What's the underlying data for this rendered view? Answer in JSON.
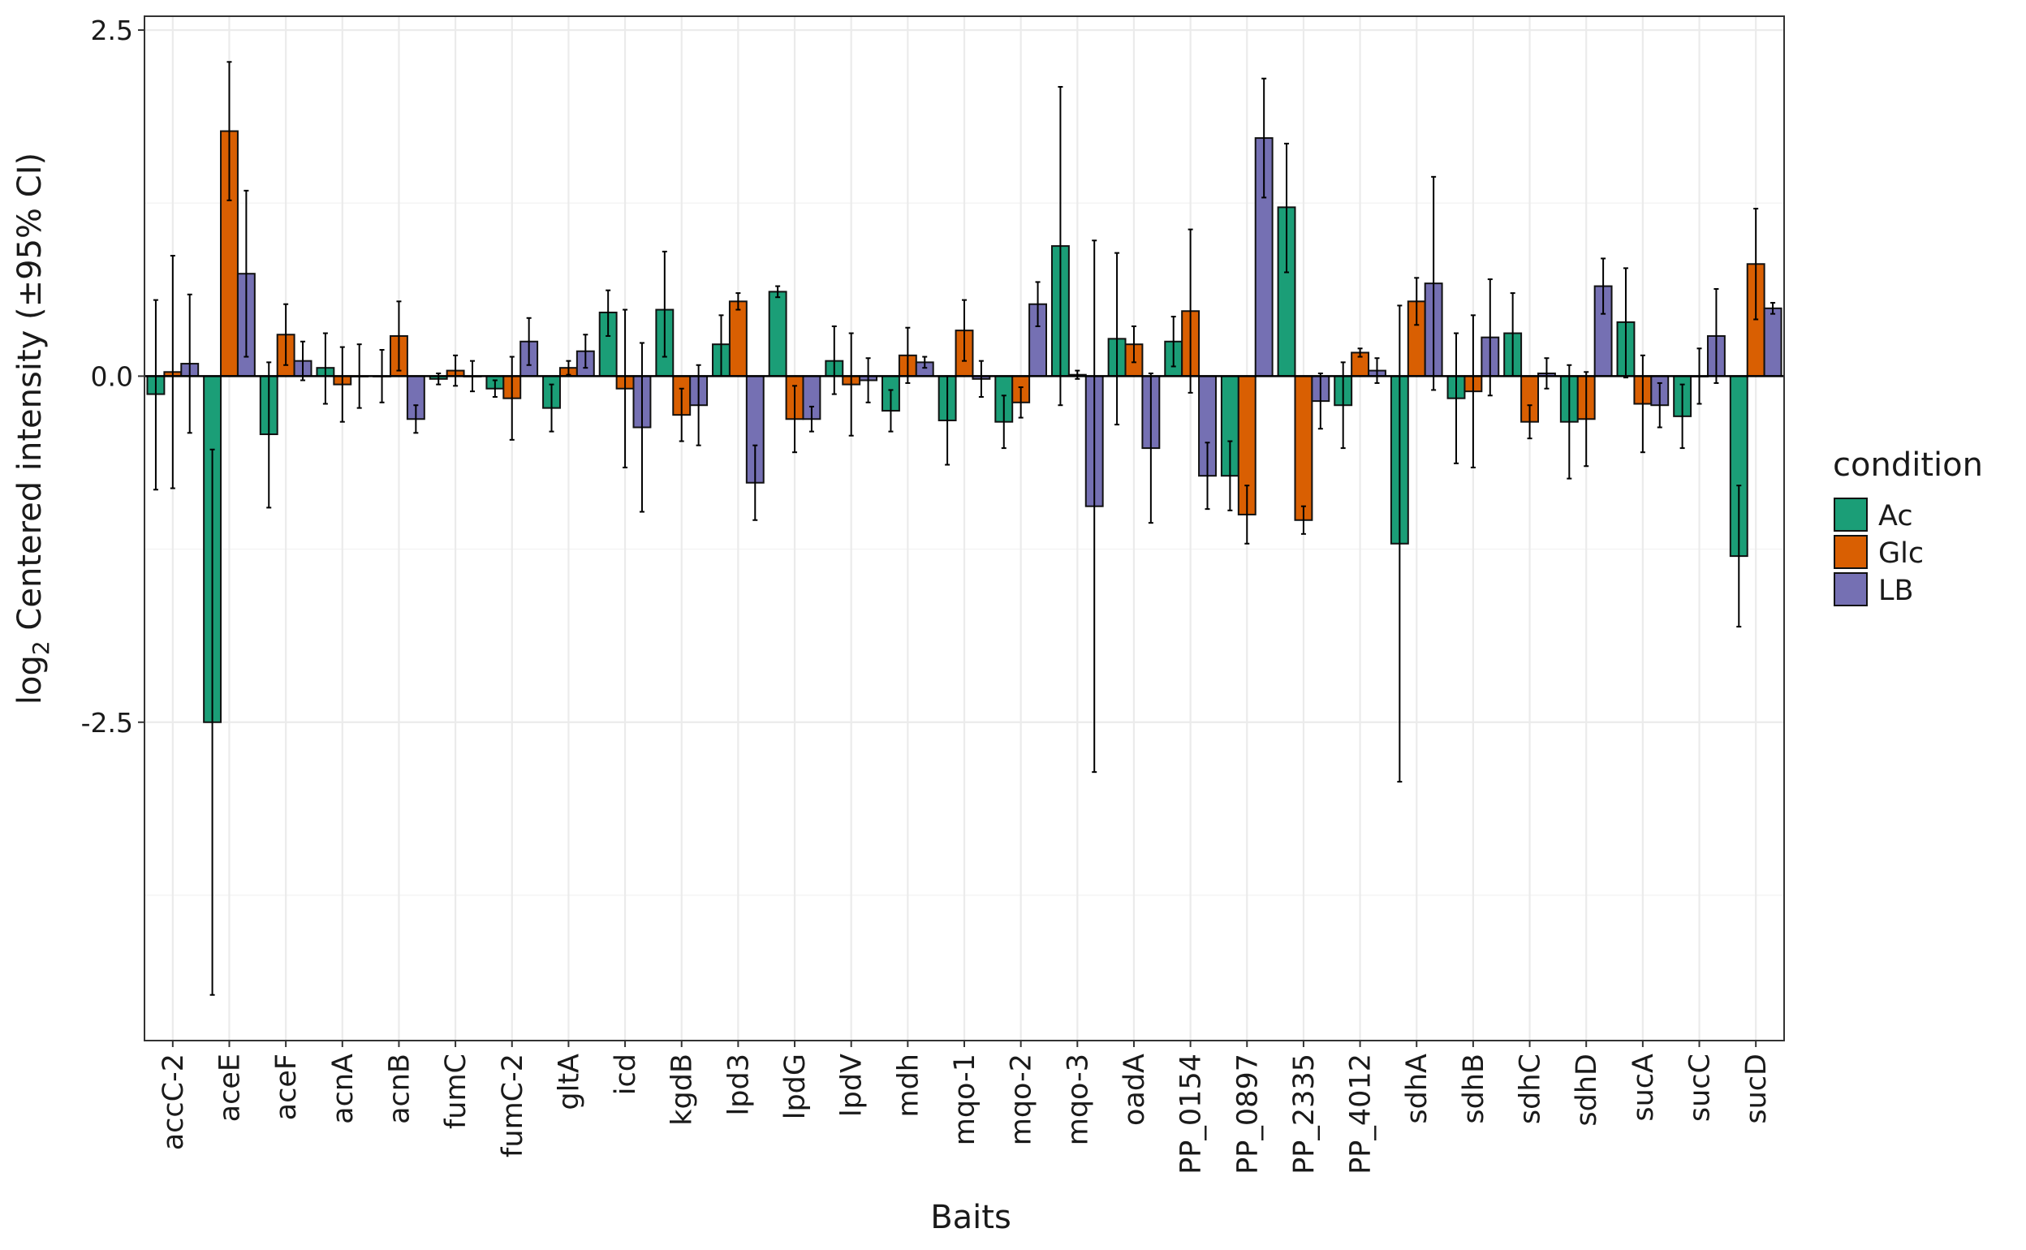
{
  "chart_data": {
    "type": "bar",
    "title": "",
    "xlabel": "Baits",
    "ylabel_prefix": "log",
    "ylabel_subscript": "2",
    "ylabel_rest": " Centered intensity (±95% CI)",
    "ylim": [
      -4.8,
      2.6
    ],
    "yticks": [
      2.5,
      0.0,
      -2.5
    ],
    "ytick_labels": [
      "2.5",
      "0.0",
      "-2.5"
    ],
    "grid": true,
    "legend": {
      "title": "condition",
      "position": "right"
    },
    "categories": [
      "accC-2",
      "aceE",
      "aceF",
      "acnA",
      "acnB",
      "fumC",
      "fumC-2",
      "gltA",
      "icd",
      "kgdB",
      "lpd3",
      "lpdG",
      "lpdV",
      "mdh",
      "mqo-1",
      "mqo-2",
      "mqo-3",
      "oadA",
      "PP_0154",
      "PP_0897",
      "PP_2335",
      "PP_4012",
      "sdhA",
      "sdhB",
      "sdhC",
      "sdhD",
      "sucA",
      "sucC",
      "sucD"
    ],
    "series": [
      {
        "name": "Ac",
        "color": "#1b9e77",
        "values": [
          -0.13,
          -2.5,
          -0.42,
          0.06,
          0.0,
          -0.02,
          -0.09,
          -0.23,
          0.46,
          0.48,
          0.23,
          0.61,
          0.11,
          -0.25,
          -0.32,
          -0.33,
          0.94,
          0.27,
          0.25,
          -0.72,
          1.22,
          -0.21,
          -1.21,
          -0.16,
          0.31,
          -0.33,
          0.39,
          -0.29,
          -1.3
        ],
        "ci_low": [
          -0.82,
          -4.47,
          -0.95,
          -0.2,
          -0.19,
          -0.06,
          -0.15,
          -0.4,
          0.29,
          0.14,
          0.0,
          0.57,
          -0.13,
          -0.4,
          -0.64,
          -0.52,
          -0.21,
          -0.35,
          0.07,
          -0.97,
          0.75,
          -0.52,
          -2.93,
          -0.63,
          0.0,
          -0.74,
          -0.01,
          -0.52,
          -1.81
        ],
        "ci_high": [
          0.55,
          -0.53,
          0.1,
          0.31,
          0.19,
          0.02,
          -0.03,
          -0.06,
          0.62,
          0.9,
          0.44,
          0.65,
          0.36,
          -0.1,
          0.0,
          -0.14,
          2.09,
          0.89,
          0.43,
          -0.47,
          1.68,
          0.1,
          0.51,
          0.31,
          0.6,
          0.08,
          0.78,
          -0.06,
          -0.79
        ]
      },
      {
        "name": "Glc",
        "color": "#d95f02",
        "values": [
          0.03,
          1.77,
          0.3,
          -0.06,
          0.29,
          0.04,
          -0.16,
          0.06,
          -0.09,
          -0.28,
          0.54,
          -0.31,
          -0.06,
          0.15,
          0.33,
          -0.19,
          0.01,
          0.23,
          0.47,
          -1.0,
          -1.04,
          0.17,
          0.54,
          -0.11,
          -0.33,
          -0.31,
          -0.2,
          0.0,
          0.81
        ],
        "ci_low": [
          -0.81,
          1.27,
          0.08,
          -0.33,
          0.04,
          -0.07,
          -0.46,
          0.01,
          -0.66,
          -0.47,
          0.48,
          -0.55,
          -0.43,
          -0.05,
          0.11,
          -0.3,
          -0.02,
          0.1,
          -0.12,
          -1.21,
          -1.14,
          0.14,
          0.37,
          -0.66,
          -0.45,
          -0.65,
          -0.55,
          -0.2,
          0.41
        ],
        "ci_high": [
          0.87,
          2.27,
          0.52,
          0.21,
          0.54,
          0.15,
          0.14,
          0.11,
          0.48,
          -0.09,
          0.6,
          -0.07,
          0.31,
          0.35,
          0.55,
          -0.08,
          0.04,
          0.36,
          1.06,
          -0.79,
          -0.94,
          0.2,
          0.71,
          0.44,
          -0.21,
          0.03,
          0.15,
          0.2,
          1.21
        ]
      },
      {
        "name": "LB",
        "color": "#7570b3",
        "values": [
          0.09,
          0.74,
          0.11,
          0.0,
          -0.31,
          0.0,
          0.25,
          0.18,
          -0.37,
          -0.21,
          -0.77,
          -0.31,
          -0.03,
          0.1,
          -0.02,
          0.52,
          -0.94,
          -0.52,
          -0.72,
          1.72,
          -0.18,
          0.04,
          0.67,
          0.28,
          0.02,
          0.65,
          -0.21,
          0.29,
          0.49
        ],
        "ci_low": [
          -0.41,
          0.14,
          -0.03,
          -0.23,
          -0.41,
          -0.11,
          0.08,
          0.06,
          -0.98,
          -0.5,
          -1.04,
          -0.4,
          -0.19,
          0.06,
          -0.15,
          0.36,
          -2.86,
          -1.06,
          -0.96,
          1.29,
          -0.38,
          -0.05,
          -0.1,
          -0.14,
          -0.09,
          0.45,
          -0.37,
          -0.05,
          0.45
        ],
        "ci_high": [
          0.59,
          1.34,
          0.25,
          0.23,
          -0.21,
          0.11,
          0.42,
          0.3,
          0.24,
          0.08,
          -0.5,
          -0.22,
          0.13,
          0.14,
          0.11,
          0.68,
          0.98,
          0.02,
          -0.48,
          2.15,
          0.02,
          0.13,
          1.44,
          0.7,
          0.13,
          0.85,
          -0.05,
          0.63,
          0.53
        ]
      }
    ]
  }
}
